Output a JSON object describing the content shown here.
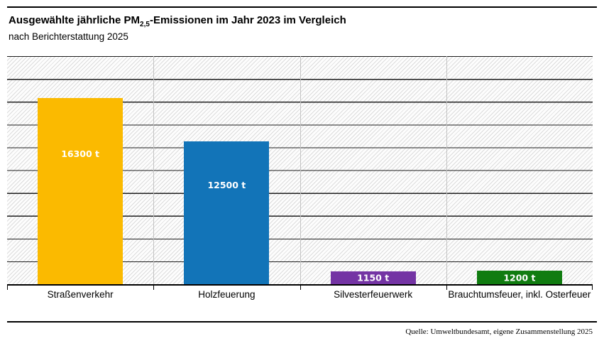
{
  "header": {
    "title_prefix": "Ausgewählte jährliche PM",
    "title_subscript": "2,5",
    "title_suffix": "-Emissionen im Jahr 2023 im Vergleich",
    "subtitle": "nach Berichterstattung 2025"
  },
  "footer": {
    "source": "Quelle: Umweltbundesamt, eigene Zusammenstellung 2025"
  },
  "chart_data": {
    "type": "bar",
    "title": "Ausgewählte jährliche PM2,5-Emissionen im Jahr 2023 im Vergleich",
    "subtitle": "nach Berichterstattung 2025",
    "categories": [
      "Straßenverkehr",
      "Holzfeuerung",
      "Silvesterfeuerwerk",
      "Brauchtumsfeuer, inkl. Osterfeuer"
    ],
    "values": [
      16300,
      12500,
      1150,
      1200
    ],
    "value_labels": [
      "16300 t",
      "12500 t",
      "1150 t",
      "1200 t"
    ],
    "bar_colors": [
      "#FBBA00",
      "#1274B8",
      "#7434A4",
      "#107C10"
    ],
    "unit": "t",
    "xlabel": "",
    "ylabel": "",
    "ylim": [
      0,
      20000
    ],
    "gridline_step": 2000,
    "grid": "horizontal-black-lines-on-diagonal-hatch",
    "legend": "none",
    "source": "Quelle: Umweltbundesamt, eigene Zusammenstellung 2025"
  }
}
